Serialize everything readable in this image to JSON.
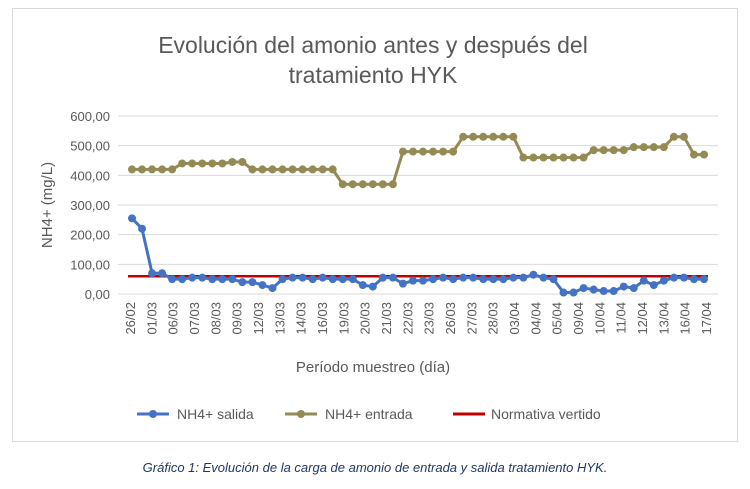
{
  "chart_data": {
    "type": "line",
    "title_line1": "Evolución del amonio antes y después del",
    "title_line2": "tratamiento HYK",
    "xlabel": "Período muestreo (día)",
    "ylabel": "NH4+ (mg/L)",
    "ylim": [
      0,
      600
    ],
    "ytick_labels": [
      "0,00",
      "100,00",
      "200,00",
      "300,00",
      "400,00",
      "500,00",
      "600,00"
    ],
    "ytick_values": [
      0,
      100,
      200,
      300,
      400,
      500,
      600
    ],
    "grid": "horizontal",
    "legend_position": "bottom",
    "x_tick_labels": [
      "26/02",
      "01/03",
      "06/03",
      "07/03",
      "08/03",
      "09/03",
      "12/03",
      "13/03",
      "14/03",
      "16/03",
      "19/03",
      "20/03",
      "21/03",
      "22/03",
      "23/03",
      "26/03",
      "27/03",
      "28/03",
      "03/04",
      "04/04",
      "05/04",
      "09/04",
      "10/04",
      "11/04",
      "12/04",
      "13/04",
      "16/04",
      "17/04"
    ],
    "series": [
      {
        "name": "NH4+ salida",
        "color": "#4472c4",
        "marker": "circle",
        "values": [
          255,
          220,
          70,
          70,
          50,
          50,
          55,
          55,
          50,
          50,
          50,
          40,
          40,
          30,
          20,
          50,
          55,
          55,
          50,
          55,
          50,
          50,
          50,
          30,
          25,
          55,
          55,
          35,
          45,
          45,
          50,
          55,
          50,
          55,
          55,
          50,
          50,
          50,
          55,
          55,
          65,
          55,
          50,
          5,
          5,
          20,
          15,
          10,
          10,
          25,
          20,
          45,
          30,
          45,
          55,
          55,
          50,
          50
        ]
      },
      {
        "name": "NH4+ entrada",
        "color": "#948a54",
        "marker": "circle",
        "values": [
          420,
          420,
          420,
          420,
          420,
          440,
          440,
          440,
          440,
          440,
          445,
          445,
          420,
          420,
          420,
          420,
          420,
          420,
          420,
          420,
          420,
          370,
          370,
          370,
          370,
          370,
          370,
          480,
          480,
          480,
          480,
          480,
          480,
          530,
          530,
          530,
          530,
          530,
          530,
          460,
          460,
          460,
          460,
          460,
          460,
          460,
          485,
          485,
          485,
          485,
          495,
          495,
          495,
          495,
          530,
          530,
          470,
          470
        ]
      },
      {
        "name": "Normativa vertido",
        "color": "#c00000",
        "marker": "none",
        "values": [
          60,
          60
        ]
      }
    ]
  },
  "caption": "Gráfico 1: Evolución de la carga de amonio de entrada y salida tratamiento HYK."
}
